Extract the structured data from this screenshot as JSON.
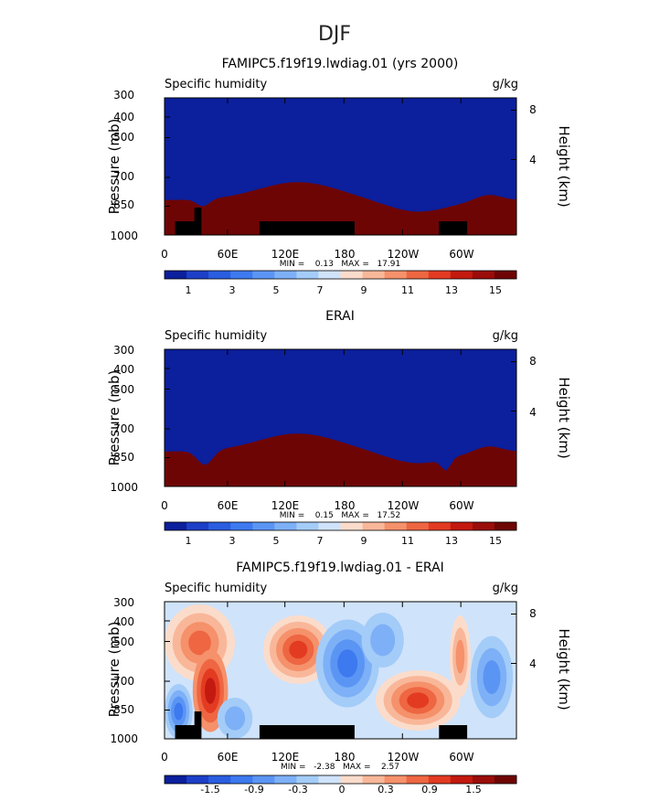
{
  "page_title": "DJF",
  "chart_data": [
    {
      "type": "heatmap",
      "title": "FAMIPC5.f19f19.lwdiag.01 (yrs 2000)",
      "left_label": "Specific humidity",
      "right_label": "g/kg",
      "ylabel": "Pressure (mb)",
      "y2label": "Height (km)",
      "x_ticks": [
        "0",
        "60E",
        "120E",
        "180",
        "120W",
        "60W"
      ],
      "y_ticks": [
        "300",
        "400",
        "500",
        "700",
        "850",
        "1000"
      ],
      "y2_ticks": [
        "8",
        "4"
      ],
      "stats": "MIN =    0.13   MAX =   17.91",
      "colorbar_labels": [
        "1",
        "3",
        "5",
        "7",
        "9",
        "11",
        "13",
        "15"
      ],
      "colors": [
        "#0c1f9c",
        "#1d3fc8",
        "#2a5de0",
        "#3d79ef",
        "#5b95f4",
        "#7db0f7",
        "#a4ccf8",
        "#cfe3fb",
        "#fbdccb",
        "#f9b79a",
        "#f5916b",
        "#ee6642",
        "#e33b22",
        "#c3190f",
        "#9a0d0a",
        "#6e0505"
      ],
      "lim": [
        0,
        17
      ],
      "has_topo": true
    },
    {
      "type": "heatmap",
      "title": "ERAI",
      "left_label": "Specific humidity",
      "right_label": "g/kg",
      "ylabel": "Pressure (mb)",
      "y2label": "Height (km)",
      "x_ticks": [
        "0",
        "60E",
        "120E",
        "180",
        "120W",
        "60W"
      ],
      "y_ticks": [
        "300",
        "400",
        "500",
        "700",
        "850",
        "1000"
      ],
      "y2_ticks": [
        "8",
        "4"
      ],
      "stats": "MIN =    0.15   MAX =   17.52",
      "colorbar_labels": [
        "1",
        "3",
        "5",
        "7",
        "9",
        "11",
        "13",
        "15"
      ],
      "colors": [
        "#0c1f9c",
        "#1d3fc8",
        "#2a5de0",
        "#3d79ef",
        "#5b95f4",
        "#7db0f7",
        "#a4ccf8",
        "#cfe3fb",
        "#fbdccb",
        "#f9b79a",
        "#f5916b",
        "#ee6642",
        "#e33b22",
        "#c3190f",
        "#9a0d0a",
        "#6e0505"
      ],
      "lim": [
        0,
        17
      ],
      "has_topo": false
    },
    {
      "type": "heatmap",
      "title": "FAMIPC5.f19f19.lwdiag.01 - ERAI",
      "left_label": "Specific humidity",
      "right_label": "g/kg",
      "ylabel": "Pressure (mb)",
      "y2label": "Height (km)",
      "x_ticks": [
        "0",
        "60E",
        "120E",
        "180",
        "120W",
        "60W"
      ],
      "y_ticks": [
        "300",
        "400",
        "500",
        "700",
        "850",
        "1000"
      ],
      "y2_ticks": [
        "8",
        "4"
      ],
      "stats": "MIN =   -2.38   MAX =    2.57",
      "colorbar_labels": [
        "-1.5",
        "-0.9",
        "-0.3",
        "0",
        "0.3",
        "0.9",
        "1.5"
      ],
      "colors": [
        "#0c1f9c",
        "#1d3fc8",
        "#2a5de0",
        "#3d79ef",
        "#5b95f4",
        "#7db0f7",
        "#a4ccf8",
        "#cfe3fb",
        "#fbdccb",
        "#f9b79a",
        "#f5916b",
        "#ee6642",
        "#e33b22",
        "#c3190f",
        "#9a0d0a",
        "#6e0505"
      ],
      "lim": [
        -2.1,
        2.1
      ],
      "has_topo": true
    }
  ]
}
